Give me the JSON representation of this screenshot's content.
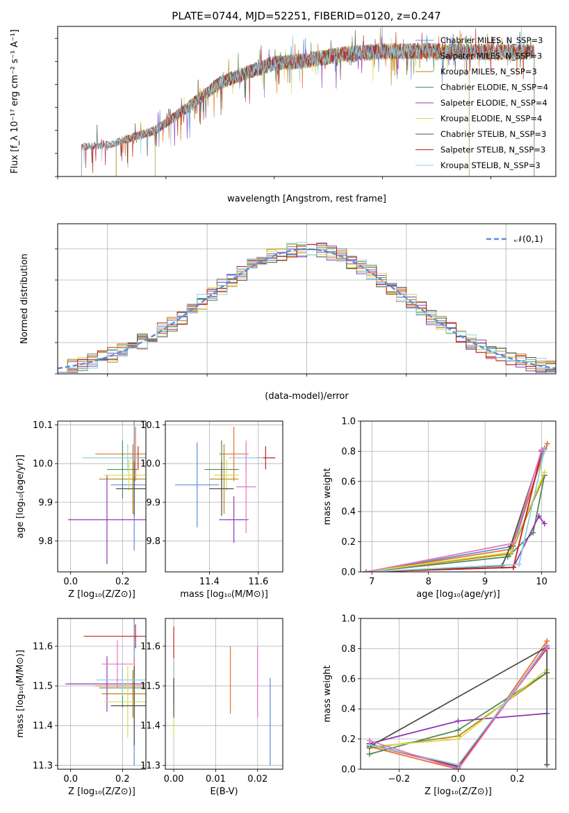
{
  "figure": {
    "title": "PLATE=0744, MJD=52251, FIBERID=0120, z=0.247"
  },
  "colors": {
    "c1": "#5B8DD6",
    "c2": "#E8702A",
    "c3": "#B8860B",
    "c4": "#4E8A57",
    "c5": "#8E35B5",
    "c6": "#D6DB55",
    "c7": "#4D4D4D",
    "c8": "#C0201D",
    "c9": "#8FD0E0",
    "pink": "#E377C2",
    "gauss": "#5B8DD6"
  },
  "chart_data": [
    {
      "id": "spectrum",
      "type": "line",
      "xlabel": "wavelength [Angstrom, rest frame]",
      "ylabel": "Flux [f_λ 10⁻¹⁷ erg cm⁻² s⁻¹ A⁻¹]",
      "xlim": [
        3000,
        7600
      ],
      "ylim": [
        0,
        16.3
      ],
      "xticks": [
        "3000",
        "4000",
        "5000",
        "6000",
        "7000"
      ],
      "yticks": [
        "0.0",
        "2.5",
        "5.0",
        "7.5",
        "10.0",
        "12.5",
        "15.0"
      ],
      "grid": false,
      "legend_position": "top-right",
      "series": [
        {
          "name": "Chabrier MILES, N_SSP=3",
          "start": 3540,
          "end": 7400
        },
        {
          "name": "Salpeter MILES, N_SSP=3",
          "start": 3540,
          "end": 7400
        },
        {
          "name": "Kroupa MILES, N_SSP=3",
          "start": 3540,
          "end": 7400
        },
        {
          "name": "Chabrier ELODIE, N_SSP=4",
          "start": 3900,
          "end": 6800
        },
        {
          "name": "Salpeter ELODIE, N_SSP=4",
          "start": 3900,
          "end": 6800
        },
        {
          "name": "Kroupa ELODIE, N_SSP=4",
          "start": 3900,
          "end": 6800
        },
        {
          "name": "Chabrier STELIB, N_SSP=3",
          "start": 3220,
          "end": 7400
        },
        {
          "name": "Salpeter STELIB, N_SSP=3",
          "start": 3220,
          "end": 7400
        },
        {
          "name": "Kroupa STELIB, N_SSP=3",
          "start": 3220,
          "end": 7400
        }
      ],
      "trend": {
        "x": [
          3200,
          3500,
          3700,
          3900,
          4000,
          4200,
          4500,
          4800,
          5000,
          5300,
          5600,
          6000,
          6500,
          7000,
          7400
        ],
        "y": [
          3.2,
          3.5,
          4.3,
          5.0,
          5.8,
          7.5,
          10.2,
          11.5,
          12.3,
          12.6,
          13.2,
          13.6,
          13.6,
          13.5,
          13.5
        ]
      }
    },
    {
      "id": "residuals",
      "type": "line",
      "xlabel": "(data-model)/error",
      "ylabel": "Normed distribution",
      "xlim": [
        -2.5,
        2.5
      ],
      "ylim": [
        0,
        0.48
      ],
      "xticks": [
        "−2",
        "−1",
        "0",
        "1",
        "2"
      ],
      "yticks": [
        "0.0",
        "0.1",
        "0.2",
        "0.3",
        "0.4"
      ],
      "grid": true,
      "legend": "𝒩(0,1)",
      "legend_position": "top-right",
      "gaussian": {
        "mean": 0,
        "sigma": 1
      }
    },
    {
      "id": "age_vs_Z",
      "type": "scatter",
      "xlabel": "Z [log₁₀(Z/Z⊙)]",
      "ylabel": "age  [log₁₀(age/yr)]",
      "xlim": [
        -0.05,
        0.29
      ],
      "ylim": [
        9.72,
        10.11
      ],
      "xticks": [
        {
          "v": 0,
          "t": "0.0"
        },
        {
          "v": 0.2,
          "t": "0.2"
        }
      ],
      "yticks": [
        {
          "v": 9.8,
          "t": "9.8"
        },
        {
          "v": 9.9,
          "t": "9.9"
        },
        {
          "v": 10.0,
          "t": "10.0"
        },
        {
          "v": 10.1,
          "t": "10.1"
        }
      ],
      "points": [
        {
          "c": "c1",
          "x": 0.245,
          "xe": 0.09,
          "y": 9.945,
          "ye": 0.17
        },
        {
          "c": "c2",
          "x": 0.25,
          "xe": 0.155,
          "y": 10.025,
          "ye": 0.07
        },
        {
          "c": "c3",
          "x": 0.24,
          "xe": 0.13,
          "y": 9.96,
          "ye": 0.09
        },
        {
          "c": "c4",
          "x": 0.2,
          "xe": 0.06,
          "y": 9.985,
          "ye": 0.075
        },
        {
          "c": "c5",
          "x": 0.14,
          "xe": 0.15,
          "y": 9.855,
          "ye": 0.115
        },
        {
          "c": "c6",
          "x": 0.225,
          "xe": 0.095,
          "y": 9.97,
          "ye": 0.04
        },
        {
          "c": "c7",
          "x": 0.245,
          "xe": 0.07,
          "y": 9.935,
          "ye": 0.07
        },
        {
          "c": "c8",
          "x": 0.26,
          "xe": 0.03,
          "y": 10.015,
          "ye": 0.03
        },
        {
          "c": "c9",
          "x": 0.22,
          "xe": 0.175,
          "y": 10.015,
          "ye": 0.035
        }
      ]
    },
    {
      "id": "age_vs_mass",
      "type": "scatter",
      "xlabel": "mass [log₁₀(M/M⊙)]",
      "ylabel": "",
      "xlim": [
        11.22,
        11.7
      ],
      "ylim": [
        9.72,
        10.11
      ],
      "xticks": [
        {
          "v": 11.4,
          "t": "11.4"
        },
        {
          "v": 11.6,
          "t": "11.6"
        }
      ],
      "yticks": [
        {
          "v": 9.8,
          "t": "9.8"
        },
        {
          "v": 9.9,
          "t": "9.9"
        },
        {
          "v": 10.0,
          "t": "10.0"
        },
        {
          "v": 10.1,
          "t": "10.1"
        }
      ],
      "points": [
        {
          "c": "c1",
          "x": 11.35,
          "xe": 0.09,
          "y": 9.945,
          "ye": 0.11
        },
        {
          "c": "c2",
          "x": 11.5,
          "xe": 0.06,
          "y": 10.025,
          "ye": 0.07
        },
        {
          "c": "c3",
          "x": 11.46,
          "xe": 0.06,
          "y": 9.96,
          "ye": 0.09
        },
        {
          "c": "c4",
          "x": 11.45,
          "xe": 0.07,
          "y": 9.985,
          "ye": 0.075
        },
        {
          "c": "c5",
          "x": 11.5,
          "xe": 0.06,
          "y": 9.855,
          "ye": 0.06
        },
        {
          "c": "c6",
          "x": 11.47,
          "xe": 0.05,
          "y": 9.97,
          "ye": 0.04
        },
        {
          "c": "c7",
          "x": 11.45,
          "xe": 0.05,
          "y": 9.935,
          "ye": 0.07
        },
        {
          "c": "c8",
          "x": 11.63,
          "xe": 0.04,
          "y": 10.015,
          "ye": 0.03
        },
        {
          "c": "c9",
          "x": 11.55,
          "xe": 0.07,
          "y": 10.015,
          "ye": 0.035
        },
        {
          "c": "pink",
          "x": 11.55,
          "xe": 0.04,
          "y": 9.94,
          "ye": 0.12
        }
      ]
    },
    {
      "id": "mass_vs_Z",
      "type": "scatter",
      "xlabel": "Z [log₁₀(Z/Z⊙)]",
      "ylabel": "mass [log₁₀(M/M⊙)]",
      "xlim": [
        -0.05,
        0.29
      ],
      "ylim": [
        11.29,
        11.67
      ],
      "xticks": [
        {
          "v": 0,
          "t": "0.0"
        },
        {
          "v": 0.2,
          "t": "0.2"
        }
      ],
      "yticks": [
        {
          "v": 11.3,
          "t": "11.3"
        },
        {
          "v": 11.4,
          "t": "11.4"
        },
        {
          "v": 11.5,
          "t": "11.5"
        },
        {
          "v": 11.6,
          "t": "11.6"
        }
      ],
      "points": [
        {
          "c": "c1",
          "x": 0.245,
          "xe": 0.1,
          "y": 11.5,
          "ye": 0.2
        },
        {
          "c": "c2",
          "x": 0.245,
          "xe": 0.15,
          "y": 11.5,
          "ye": 0.07
        },
        {
          "c": "c3",
          "x": 0.24,
          "xe": 0.12,
          "y": 11.48,
          "ye": 0.06
        },
        {
          "c": "c4",
          "x": 0.2,
          "xe": 0.09,
          "y": 11.495,
          "ye": 0.05
        },
        {
          "c": "c5",
          "x": 0.14,
          "xe": 0.16,
          "y": 11.505,
          "ye": 0.07
        },
        {
          "c": "c6",
          "x": 0.22,
          "xe": 0.09,
          "y": 11.46,
          "ye": 0.09
        },
        {
          "c": "c7",
          "x": 0.245,
          "xe": 0.09,
          "y": 11.45,
          "ye": 0.1
        },
        {
          "c": "c8",
          "x": 0.25,
          "xe": 0.2,
          "y": 11.625,
          "ye": 0.03
        },
        {
          "c": "c9",
          "x": 0.2,
          "xe": 0.1,
          "y": 11.515,
          "ye": 0.04
        },
        {
          "c": "pink",
          "x": 0.18,
          "xe": 0.06,
          "y": 11.555,
          "ye": 0.06
        }
      ]
    },
    {
      "id": "mass_vs_EBV",
      "type": "scatter",
      "xlabel": "E(B-V)",
      "ylabel": "",
      "xlim": [
        -0.002,
        0.026
      ],
      "ylim": [
        11.29,
        11.67
      ],
      "xticks": [
        {
          "v": 0,
          "t": "0.00"
        },
        {
          "v": 0.01,
          "t": "0.01"
        },
        {
          "v": 0.02,
          "t": "0.02"
        }
      ],
      "yticks": [
        {
          "v": 11.3,
          "t": "11.3"
        },
        {
          "v": 11.4,
          "t": "11.4"
        },
        {
          "v": 11.5,
          "t": "11.5"
        },
        {
          "v": 11.6,
          "t": "11.6"
        }
      ],
      "points": [
        {
          "c": "c1",
          "x": 0.023,
          "xe": 0,
          "y": 11.41,
          "ye": 0.11
        },
        {
          "c": "c2",
          "x": 0.0135,
          "xe": 0,
          "y": 11.515,
          "ye": 0.085
        },
        {
          "c": "pink",
          "x": 0.02,
          "xe": 0,
          "y": 11.51,
          "ye": 0.09
        },
        {
          "c": "c8",
          "x": 0.0,
          "xe": 0,
          "y": 11.55,
          "ye": 0.1
        },
        {
          "c": "c6",
          "x": 0.0,
          "xe": 0,
          "y": 11.45,
          "ye": 0.08
        },
        {
          "c": "c9",
          "x": 0.0,
          "xe": 0,
          "y": 11.5,
          "ye": 0.07
        },
        {
          "c": "c7",
          "x": 0.0,
          "xe": 0,
          "y": 11.47,
          "ye": 0.05
        }
      ]
    },
    {
      "id": "weight_vs_age",
      "type": "line",
      "xlabel": "age  [log₁₀(age/yr)]",
      "ylabel": "mass weight",
      "xlim": [
        6.8,
        10.25
      ],
      "ylim": [
        0,
        1.0
      ],
      "xticks": [
        {
          "v": 7,
          "t": "7"
        },
        {
          "v": 8,
          "t": "8"
        },
        {
          "v": 9,
          "t": "9"
        },
        {
          "v": 10,
          "t": "10"
        }
      ],
      "yticks": [
        {
          "v": 0,
          "t": "0.0"
        },
        {
          "v": 0.2,
          "t": "0.2"
        },
        {
          "v": 0.4,
          "t": "0.4"
        },
        {
          "v": 0.6,
          "t": "0.6"
        },
        {
          "v": 0.8,
          "t": "0.8"
        },
        {
          "v": 1.0,
          "t": "1.0"
        }
      ],
      "series": [
        {
          "c": "c1",
          "x": [
            6.9,
            9.5,
            10.05
          ],
          "y": [
            0.0,
            0.17,
            0.82
          ]
        },
        {
          "c": "c2",
          "x": [
            6.9,
            9.45,
            10.1
          ],
          "y": [
            0.0,
            0.15,
            0.85
          ]
        },
        {
          "c": "c3",
          "x": [
            6.9,
            9.45,
            10.05
          ],
          "y": [
            0.0,
            0.12,
            0.64
          ]
        },
        {
          "c": "c4",
          "x": [
            6.9,
            9.4,
            9.85,
            10.05
          ],
          "y": [
            0.0,
            0.1,
            0.26,
            0.64
          ]
        },
        {
          "c": "c5",
          "x": [
            6.9,
            9.5,
            9.95,
            10.05
          ],
          "y": [
            0.0,
            0.03,
            0.37,
            0.32
          ]
        },
        {
          "c": "c6",
          "x": [
            6.9,
            9.45,
            10.05
          ],
          "y": [
            0.0,
            0.13,
            0.66
          ]
        },
        {
          "c": "c7",
          "x": [
            6.9,
            9.3,
            9.45,
            10.0
          ],
          "y": [
            0.0,
            0.04,
            0.17,
            0.8
          ]
        },
        {
          "c": "c8",
          "x": [
            6.9,
            9.5,
            10.0
          ],
          "y": [
            0.0,
            0.03,
            0.8
          ]
        },
        {
          "c": "c9",
          "x": [
            6.9,
            9.6,
            10.05
          ],
          "y": [
            0.0,
            0.05,
            0.81
          ]
        },
        {
          "c": "pink",
          "x": [
            6.9,
            9.5,
            10.0
          ],
          "y": [
            0.0,
            0.19,
            0.81
          ]
        }
      ]
    },
    {
      "id": "weight_vs_Z",
      "type": "line",
      "xlabel": "Z [log₁₀(Z/Z⊙)]",
      "ylabel": "mass weight",
      "xlim": [
        -0.33,
        0.33
      ],
      "ylim": [
        0,
        1.0
      ],
      "xticks": [
        {
          "v": -0.2,
          "t": "−0.2"
        },
        {
          "v": 0,
          "t": "0.0"
        },
        {
          "v": 0.2,
          "t": "0.2"
        }
      ],
      "yticks": [
        {
          "v": 0,
          "t": "0.0"
        },
        {
          "v": 0.2,
          "t": "0.2"
        },
        {
          "v": 0.4,
          "t": "0.4"
        },
        {
          "v": 0.6,
          "t": "0.6"
        },
        {
          "v": 0.8,
          "t": "0.8"
        },
        {
          "v": 1.0,
          "t": "1.0"
        }
      ],
      "series": [
        {
          "c": "c1",
          "x": [
            -0.3,
            0,
            0.3
          ],
          "y": [
            0.17,
            0.01,
            0.82
          ]
        },
        {
          "c": "c2",
          "x": [
            -0.3,
            0,
            0.3
          ],
          "y": [
            0.15,
            0.0,
            0.85
          ]
        },
        {
          "c": "c3",
          "x": [
            -0.3,
            0,
            0.3
          ],
          "y": [
            0.14,
            0.22,
            0.64
          ]
        },
        {
          "c": "c4",
          "x": [
            -0.3,
            0,
            0.3
          ],
          "y": [
            0.1,
            0.26,
            0.64
          ]
        },
        {
          "c": "c5",
          "x": [
            -0.3,
            0,
            0.3
          ],
          "y": [
            0.17,
            0.32,
            0.37
          ]
        },
        {
          "c": "c6",
          "x": [
            -0.3,
            0,
            0.3
          ],
          "y": [
            0.15,
            0.2,
            0.66
          ]
        },
        {
          "c": "c7",
          "x": [
            -0.3,
            0.3,
            0.3
          ],
          "y": [
            0.15,
            0.81,
            0.03
          ]
        },
        {
          "c": "c8",
          "x": [
            -0.3,
            0,
            0.3
          ],
          "y": [
            0.16,
            0.02,
            0.8
          ]
        },
        {
          "c": "c9",
          "x": [
            -0.3,
            0,
            0.3
          ],
          "y": [
            0.16,
            0.03,
            0.81
          ]
        },
        {
          "c": "pink",
          "x": [
            -0.3,
            0,
            0.3
          ],
          "y": [
            0.19,
            0.0,
            0.81
          ]
        }
      ]
    }
  ]
}
